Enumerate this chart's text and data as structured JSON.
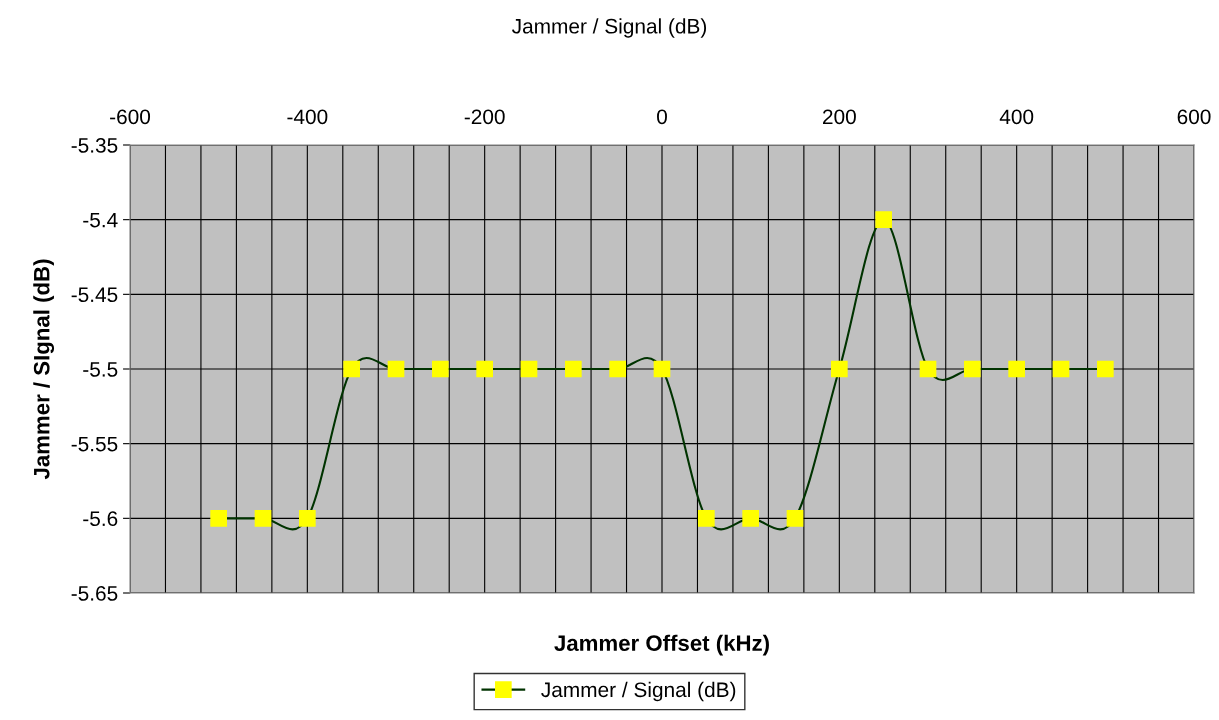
{
  "chart_data": {
    "type": "line",
    "title": "Jammer / Signal (dB)",
    "xlabel": "Jammer Offset (kHz)",
    "ylabel": "Jammer / SIgnal (dB)",
    "x": [
      -500,
      -450,
      -400,
      -350,
      -300,
      -250,
      -200,
      -150,
      -100,
      -50,
      0,
      50,
      100,
      150,
      200,
      250,
      300,
      350,
      400,
      450,
      500
    ],
    "series": [
      {
        "name": "Jammer / Signal (dB)",
        "color": "#003300",
        "values": [
          -5.6,
          -5.6,
          -5.6,
          -5.5,
          -5.5,
          -5.5,
          -5.5,
          -5.5,
          -5.5,
          -5.5,
          -5.5,
          -5.6,
          -5.6,
          -5.6,
          -5.5,
          -5.4,
          -5.5,
          -5.5,
          -5.5,
          -5.5,
          -5.5
        ]
      }
    ],
    "xlim": [
      -600,
      600
    ],
    "xticks": [
      -600,
      {
        "value": -560,
        "label": null
      },
      {
        "value": -520,
        "label": null
      },
      {
        "value": -480,
        "label": null
      },
      {
        "value": -440,
        "label": null
      },
      -400,
      {
        "value": -360,
        "label": null
      },
      {
        "value": -320,
        "label": null
      },
      {
        "value": -280,
        "label": null
      },
      {
        "value": -240,
        "label": null
      },
      -200,
      {
        "value": -160,
        "label": null
      },
      {
        "value": -120,
        "label": null
      },
      {
        "value": -80,
        "label": null
      },
      {
        "value": -40,
        "label": null
      },
      0,
      {
        "value": 40,
        "label": null
      },
      {
        "value": 80,
        "label": null
      },
      {
        "value": 120,
        "label": null
      },
      {
        "value": 160,
        "label": null
      },
      200,
      {
        "value": 240,
        "label": null
      },
      {
        "value": 280,
        "label": null
      },
      {
        "value": 320,
        "label": null
      },
      {
        "value": 360,
        "label": null
      },
      400,
      {
        "value": 440,
        "label": null
      },
      {
        "value": 480,
        "label": null
      },
      {
        "value": 520,
        "label": null
      },
      {
        "value": 560,
        "label": null
      },
      600
    ],
    "ylim": [
      -5.65,
      -5.35
    ],
    "yticks": [
      -5.65,
      -5.6,
      -5.55,
      -5.5,
      -5.45,
      -5.4,
      -5.35
    ],
    "grid": true,
    "legend": "bottom",
    "marker": "square",
    "line_style": "solid"
  }
}
